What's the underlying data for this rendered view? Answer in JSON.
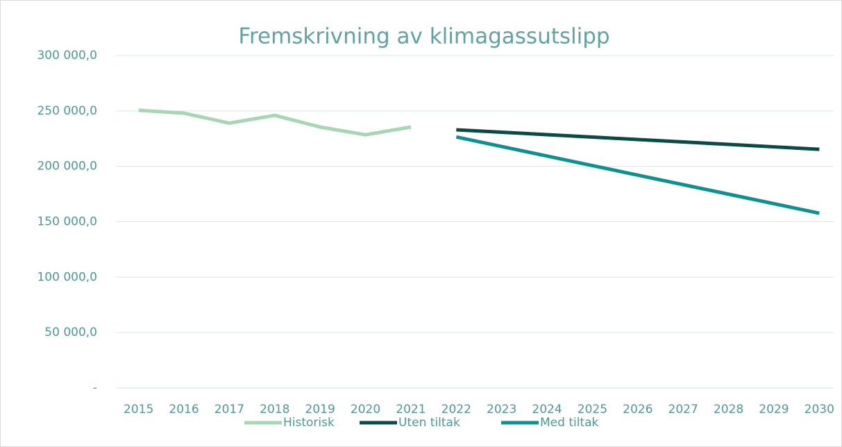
{
  "chart_data": {
    "type": "line",
    "title": "Fremskrivning av klimagassutslipp",
    "categories": [
      "2015",
      "2016",
      "2017",
      "2018",
      "2019",
      "2020",
      "2021",
      "2022",
      "2023",
      "2024",
      "2025",
      "2026",
      "2027",
      "2028",
      "2029",
      "2030"
    ],
    "series": [
      {
        "name": "Historisk",
        "color": "#a8d5b5",
        "values": [
          250600,
          248000,
          239000,
          246000,
          235500,
          228500,
          235500,
          null,
          null,
          null,
          null,
          null,
          null,
          null,
          null,
          null
        ]
      },
      {
        "name": "Uten tiltak",
        "color": "#0b4a45",
        "values": [
          null,
          null,
          null,
          null,
          null,
          null,
          null,
          233000,
          230800,
          228600,
          226400,
          224200,
          222000,
          219800,
          217600,
          215400
        ]
      },
      {
        "name": "Med tiltak",
        "color": "#0e9090",
        "values": [
          null,
          null,
          null,
          null,
          null,
          null,
          null,
          226500,
          217900,
          209300,
          200700,
          192100,
          183500,
          174900,
          166300,
          157700
        ]
      }
    ],
    "ylim": [
      0,
      300000
    ],
    "yticks": [
      {
        "value": 0,
        "label": "-"
      },
      {
        "value": 50000,
        "label": "50 000,0"
      },
      {
        "value": 100000,
        "label": "100 000,0"
      },
      {
        "value": 150000,
        "label": "150 000,0"
      },
      {
        "value": 200000,
        "label": "200 000,0"
      },
      {
        "value": 250000,
        "label": "250 000,0"
      },
      {
        "value": 300000,
        "label": "300 000,0"
      }
    ],
    "grid": true,
    "legend": "bottom"
  }
}
